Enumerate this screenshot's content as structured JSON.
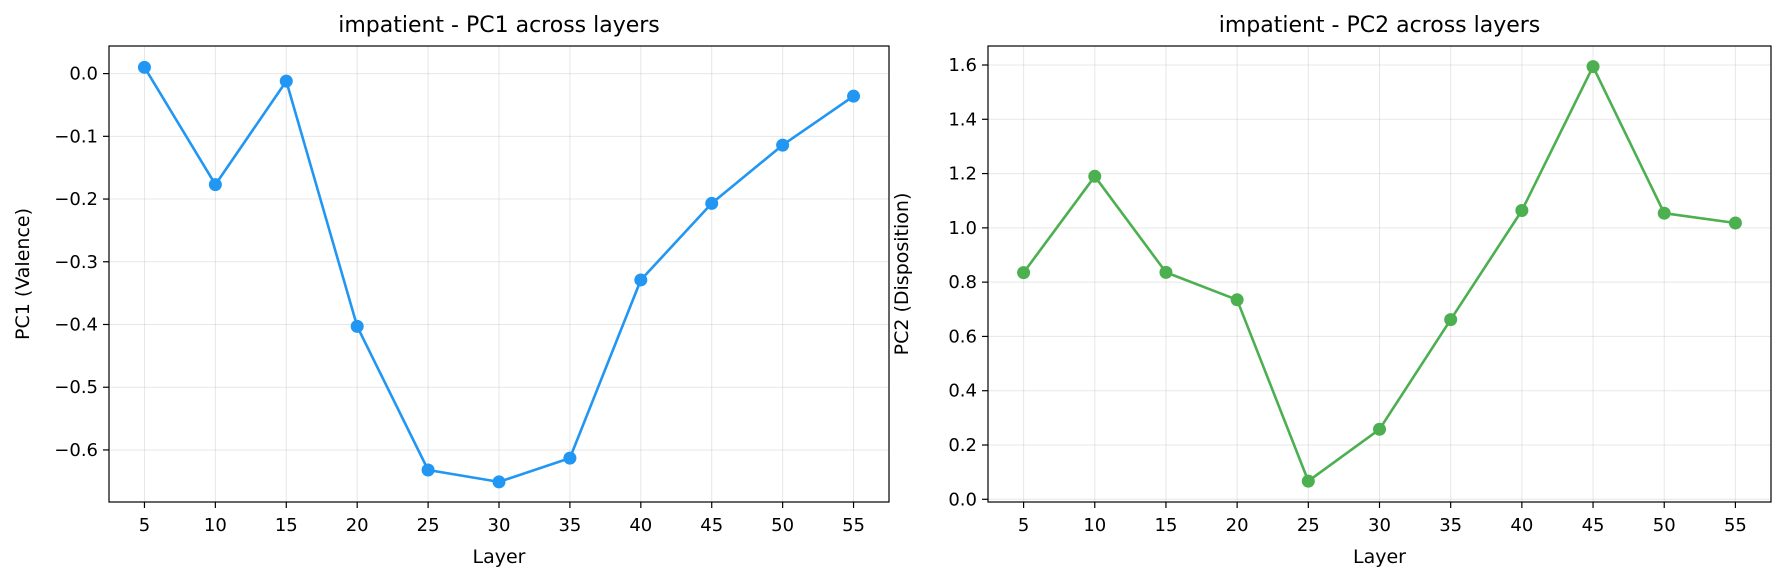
{
  "chart_data": [
    {
      "type": "line",
      "title": "impatient - PC1 across layers",
      "xlabel": "Layer",
      "ylabel": "PC1 (Valence)",
      "x": [
        5,
        10,
        15,
        20,
        25,
        30,
        35,
        40,
        45,
        50,
        55
      ],
      "xticks": [
        5,
        10,
        15,
        20,
        25,
        30,
        35,
        40,
        45,
        50,
        55
      ],
      "xlim": [
        2.5,
        57.5
      ],
      "yticks": [
        0.0,
        -0.1,
        -0.2,
        -0.3,
        -0.4,
        -0.5,
        -0.6
      ],
      "ytick_labels": [
        "0.0",
        "−0.1",
        "−0.2",
        "−0.3",
        "−0.4",
        "−0.5",
        "−0.6"
      ],
      "ylim": [
        -0.683,
        0.044
      ],
      "grid": true,
      "series": [
        {
          "color": "#2196f3",
          "values": [
            0.01,
            -0.177,
            -0.012,
            -0.403,
            -0.632,
            -0.651,
            -0.613,
            -0.329,
            -0.207,
            -0.114,
            -0.036
          ]
        }
      ]
    },
    {
      "type": "line",
      "title": "impatient - PC2 across layers",
      "xlabel": "Layer",
      "ylabel": "PC2 (Disposition)",
      "x": [
        5,
        10,
        15,
        20,
        25,
        30,
        35,
        40,
        45,
        50,
        55
      ],
      "xticks": [
        5,
        10,
        15,
        20,
        25,
        30,
        35,
        40,
        45,
        50,
        55
      ],
      "xlim": [
        2.5,
        57.5
      ],
      "yticks": [
        0.0,
        0.2,
        0.4,
        0.6,
        0.8,
        1.0,
        1.2,
        1.4,
        1.6
      ],
      "ytick_labels": [
        "0.0",
        "0.2",
        "0.4",
        "0.6",
        "0.8",
        "1.0",
        "1.2",
        "1.4",
        "1.6"
      ],
      "ylim": [
        -0.01,
        1.67
      ],
      "grid": true,
      "series": [
        {
          "color": "#4caf50",
          "values": [
            0.835,
            1.19,
            0.836,
            0.735,
            0.067,
            0.258,
            0.662,
            1.064,
            1.594,
            1.054,
            1.018
          ]
        }
      ]
    }
  ]
}
